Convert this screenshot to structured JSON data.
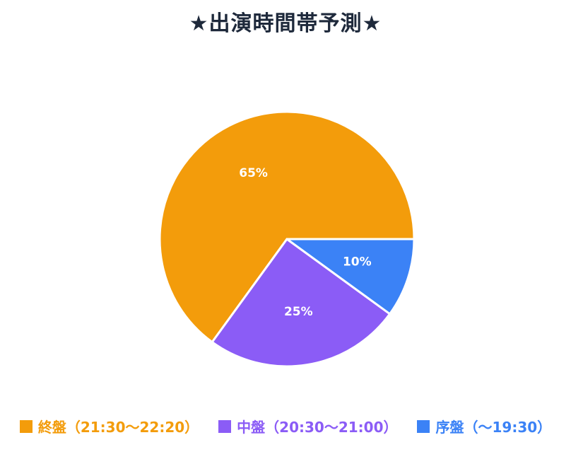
{
  "chart_data": {
    "type": "pie",
    "title": "★出演時間帯予測★",
    "categories": [
      "終盤（21:30〜22:20）",
      "中盤（20:30〜21:00）",
      "序盤（〜19:30）"
    ],
    "values": [
      65,
      25,
      10
    ],
    "data_labels": [
      "65%",
      "25%",
      "10%"
    ],
    "colors": [
      "#f39c0b",
      "#8b5cf6",
      "#3b82f6"
    ],
    "legend_position": "bottom"
  }
}
